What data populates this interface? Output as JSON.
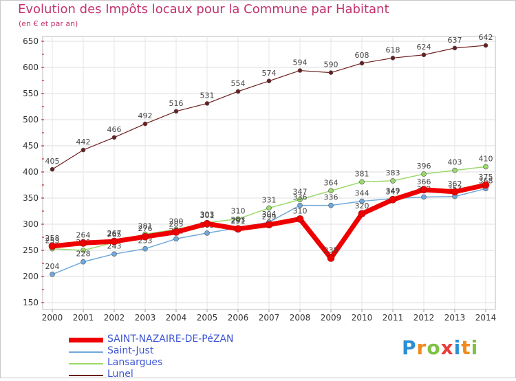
{
  "header": {
    "title": "Evolution des Impôts locaux pour la Commune par Habitant",
    "subtitle": "(en € et par an)"
  },
  "logo": {
    "letters": [
      "P",
      "r",
      "o",
      "x",
      "i",
      "t",
      "i"
    ],
    "colors": [
      "#2a8fd6",
      "#f08a1c",
      "#7dc242",
      "#e83e3e",
      "#2a8fd6",
      "#f08a1c",
      "#7dc242"
    ]
  },
  "chart_data": {
    "type": "line",
    "title": "Evolution des Impôts locaux pour la Commune par Habitant",
    "subtitle": "(en € et par an)",
    "xlabel": "",
    "ylabel": "",
    "ylim": [
      150,
      650
    ],
    "yticks": [
      150,
      200,
      250,
      300,
      350,
      400,
      450,
      500,
      550,
      600,
      650
    ],
    "categories": [
      "2000",
      "2001",
      "2002",
      "2003",
      "2004",
      "2005",
      "2006",
      "2007",
      "2008",
      "2009",
      "2010",
      "2011",
      "2012",
      "2013",
      "2014"
    ],
    "grid": true,
    "legend": "bottom-left",
    "series": [
      {
        "name": "SAINT-NAZAIRE-DE-PéZAN",
        "color": "#ee0000",
        "values": [
          258,
          264,
          267,
          276,
          285,
          301,
          291,
          299,
          310,
          235,
          320,
          347,
          366,
          362,
          375
        ]
      },
      {
        "name": "Saint-Just",
        "color": "#6fa8dc",
        "values": [
          204,
          228,
          243,
          253,
          272,
          283,
          293,
          304,
          336,
          336,
          344,
          349,
          352,
          353,
          368
        ]
      },
      {
        "name": "Lansargues",
        "color": "#9ad96b",
        "values": [
          253,
          250,
          265,
          281,
          290,
          303,
          310,
          331,
          347,
          364,
          381,
          383,
          396,
          403,
          410
        ]
      },
      {
        "name": "Lunel",
        "color": "#6b1e1e",
        "values": [
          405,
          442,
          466,
          492,
          516,
          531,
          554,
          574,
          594,
          590,
          608,
          618,
          624,
          637,
          642
        ]
      }
    ]
  }
}
